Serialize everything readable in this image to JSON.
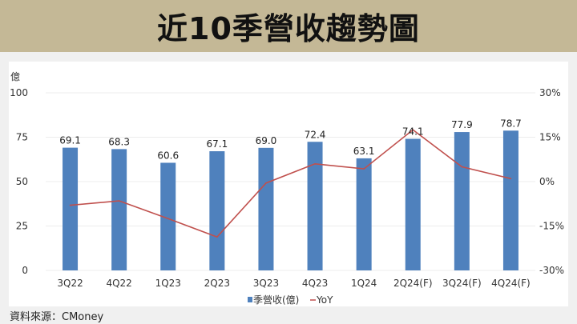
{
  "header": {
    "title": "近10季營收趨勢圖"
  },
  "footer": {
    "source": "資料來源：CMoney"
  },
  "colors": {
    "bar": "#4f81bd",
    "line": "#c0504d",
    "header_bg": "#c4b896",
    "grid": "#ececec"
  },
  "chart_data": {
    "type": "bar",
    "title": "近10季營收趨勢圖",
    "ylabel": "億",
    "categories": [
      "3Q22",
      "4Q22",
      "1Q23",
      "2Q23",
      "3Q23",
      "4Q23",
      "1Q24",
      "2Q24(F)",
      "3Q24(F)",
      "4Q24(F)"
    ],
    "series": [
      {
        "name": "季營收(億)",
        "type": "bar",
        "axis": "left",
        "values": [
          69.1,
          68.3,
          60.6,
          67.1,
          69.0,
          72.4,
          63.1,
          74.1,
          77.9,
          78.7
        ],
        "labels": [
          "69.1",
          "68.3",
          "60.6",
          "67.1",
          "69.0",
          "72.4",
          "63.1",
          "74.1",
          "77.9",
          "78.7"
        ]
      },
      {
        "name": "YoY",
        "type": "line",
        "axis": "right",
        "values": [
          -8.0,
          -6.5,
          -12.5,
          -18.7,
          -0.5,
          6.0,
          4.3,
          17.5,
          5.0,
          1.0
        ]
      }
    ],
    "left_axis": {
      "range": [
        0,
        100
      ],
      "ticks": [
        "0",
        "25",
        "50",
        "75",
        "100"
      ],
      "tick_values": [
        0,
        25,
        50,
        75,
        100
      ]
    },
    "right_axis": {
      "range": [
        -30,
        30
      ],
      "ticks": [
        "-30%",
        "-15%",
        "0%",
        "15%",
        "30%"
      ],
      "tick_values": [
        -30,
        -15,
        0,
        15,
        30
      ]
    },
    "grid": true,
    "legend": {
      "position": "bottom",
      "items": [
        "季營收(億)",
        "YoY"
      ]
    }
  }
}
